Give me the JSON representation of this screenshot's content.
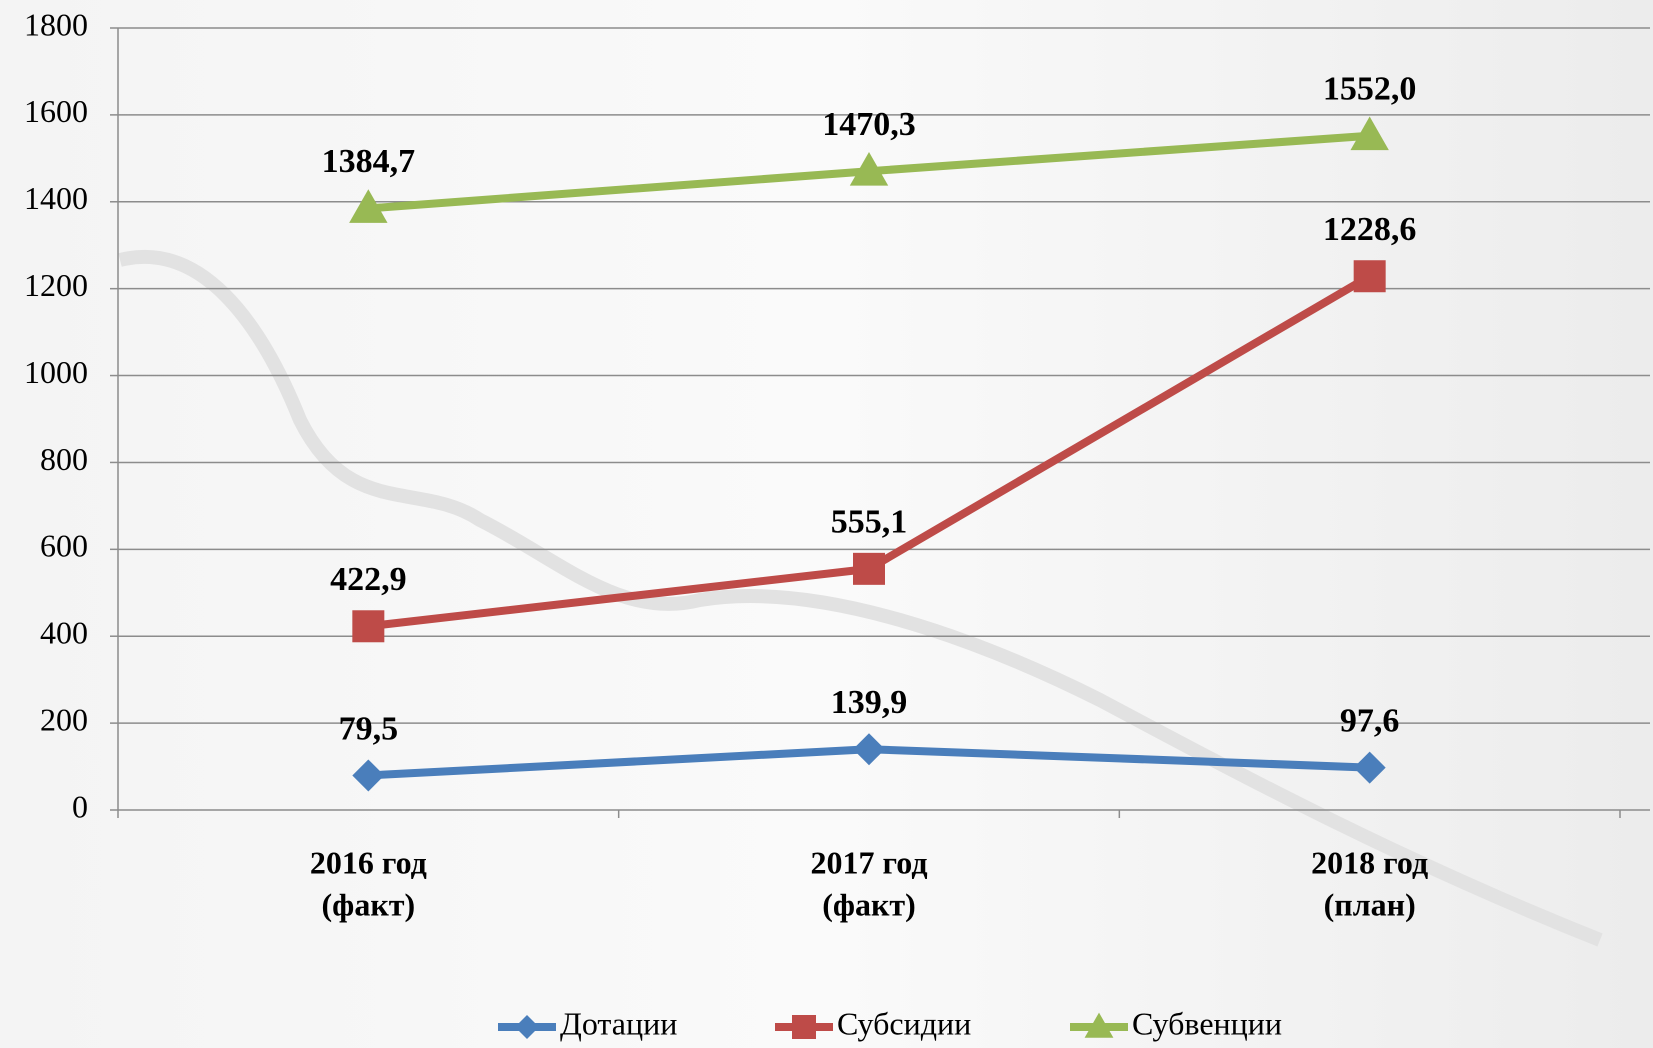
{
  "chart_data": {
    "type": "line",
    "categories": [
      [
        "2016 год",
        "(факт)"
      ],
      [
        "2017 год",
        "(факт)"
      ],
      [
        "2018 год",
        "(план)"
      ]
    ],
    "series": [
      {
        "name": "Дотации",
        "color": "#4a7ebb",
        "marker": "diamond",
        "values": [
          79.5,
          139.9,
          97.6
        ],
        "value_labels": [
          "79,5",
          "139,9",
          "97,6"
        ]
      },
      {
        "name": "Субсидии",
        "color": "#be4b48",
        "marker": "square",
        "values": [
          422.9,
          555.1,
          1228.6
        ],
        "value_labels": [
          "422,9",
          "555,1",
          "1228,6"
        ]
      },
      {
        "name": "Субвенции",
        "color": "#98b954",
        "marker": "triangle",
        "values": [
          1384.7,
          1470.3,
          1552.0
        ],
        "value_labels": [
          "1384,7",
          "1470,3",
          "1552,0"
        ]
      }
    ],
    "ylim": [
      0,
      1800
    ],
    "yticks": [
      0,
      200,
      400,
      600,
      800,
      1000,
      1200,
      1400,
      1600,
      1800
    ],
    "grid": true,
    "legend": "bottom"
  }
}
